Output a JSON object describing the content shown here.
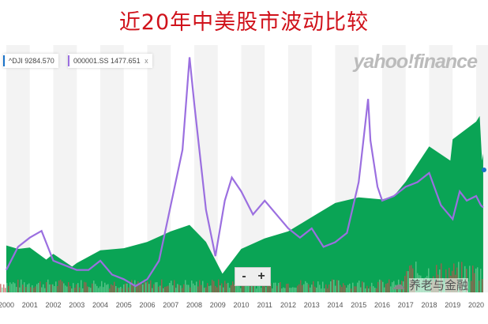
{
  "title": "近20年中美股市波动比较",
  "legend": {
    "dji": "^DJI 9284.570",
    "sse": "000001.SS 1477.651",
    "close": "x"
  },
  "zoom": {
    "minus": "-",
    "plus": "+"
  },
  "logo": "yahoo!finance",
  "watermark": "养老与金融",
  "colors": {
    "dji": "#0aa455",
    "sse": "#9b6fe0",
    "vol_up": "#6dcc95",
    "vol_down": "#c0504d",
    "title": "#d0121b"
  },
  "chart_data": {
    "type": "area",
    "title": "近20年中美股市波动比较",
    "x_ticks": [
      "2000",
      "2001",
      "2002",
      "2003",
      "2004",
      "2005",
      "2006",
      "2007",
      "2008",
      "2009",
      "2010",
      "2011",
      "2012",
      "2013",
      "2014",
      "2015",
      "2016",
      "2017",
      "2018",
      "2019",
      "2020"
    ],
    "xlim": [
      2000,
      2020.3
    ],
    "series": [
      {
        "name": "^DJI",
        "type": "area",
        "ylim": [
          4358,
          39330
        ],
        "x": [
          2000,
          2000.5,
          2001,
          2001.7,
          2002,
          2002.8,
          2003,
          2004,
          2005,
          2006,
          2007,
          2007.8,
          2008.5,
          2009.2,
          2010,
          2011,
          2012,
          2013,
          2014,
          2015,
          2016,
          2016.5,
          2017,
          2018,
          2018.9,
          2019,
          2020,
          2020.15,
          2020.25,
          2020.3
        ],
        "y": [
          11000,
          10500,
          10700,
          9000,
          9800,
          8000,
          8500,
          10300,
          10600,
          11500,
          13000,
          13900,
          11500,
          7000,
          10500,
          12000,
          13000,
          15000,
          17000,
          17800,
          17500,
          18000,
          20000,
          25000,
          23000,
          26000,
          28500,
          29300,
          23000,
          24000
        ]
      },
      {
        "name": "000001.SS",
        "type": "line",
        "ylim": [
          915,
          6265
        ],
        "x": [
          2000,
          2000.5,
          2001,
          2001.5,
          2002,
          2002.5,
          2003,
          2003.5,
          2004,
          2004.5,
          2005,
          2005.5,
          2006,
          2006.5,
          2007,
          2007.5,
          2007.8,
          2008,
          2008.5,
          2008.9,
          2009.3,
          2009.6,
          2010,
          2010.5,
          2011,
          2011.5,
          2012,
          2012.5,
          2013,
          2013.5,
          2014,
          2014.5,
          2015,
          2015.4,
          2015.5,
          2015.8,
          2016,
          2016.5,
          2017,
          2017.5,
          2018,
          2018.5,
          2019,
          2019.3,
          2019.6,
          2020,
          2020.2,
          2020.3
        ],
        "y": [
          1400,
          1900,
          2100,
          2245,
          1600,
          1500,
          1400,
          1400,
          1600,
          1300,
          1200,
          1050,
          1200,
          1600,
          2800,
          4000,
          6000,
          5000,
          2700,
          1700,
          2900,
          3400,
          3100,
          2600,
          2900,
          2600,
          2300,
          2100,
          2300,
          1900,
          2000,
          2200,
          3300,
          5100,
          4200,
          3200,
          2900,
          3000,
          3200,
          3300,
          3500,
          2800,
          2500,
          3100,
          2900,
          3000,
          2800,
          2750
        ]
      },
      {
        "name": "Volume",
        "type": "bar"
      }
    ],
    "grid": "alternating-year-bands",
    "legend_position": "top-left"
  }
}
